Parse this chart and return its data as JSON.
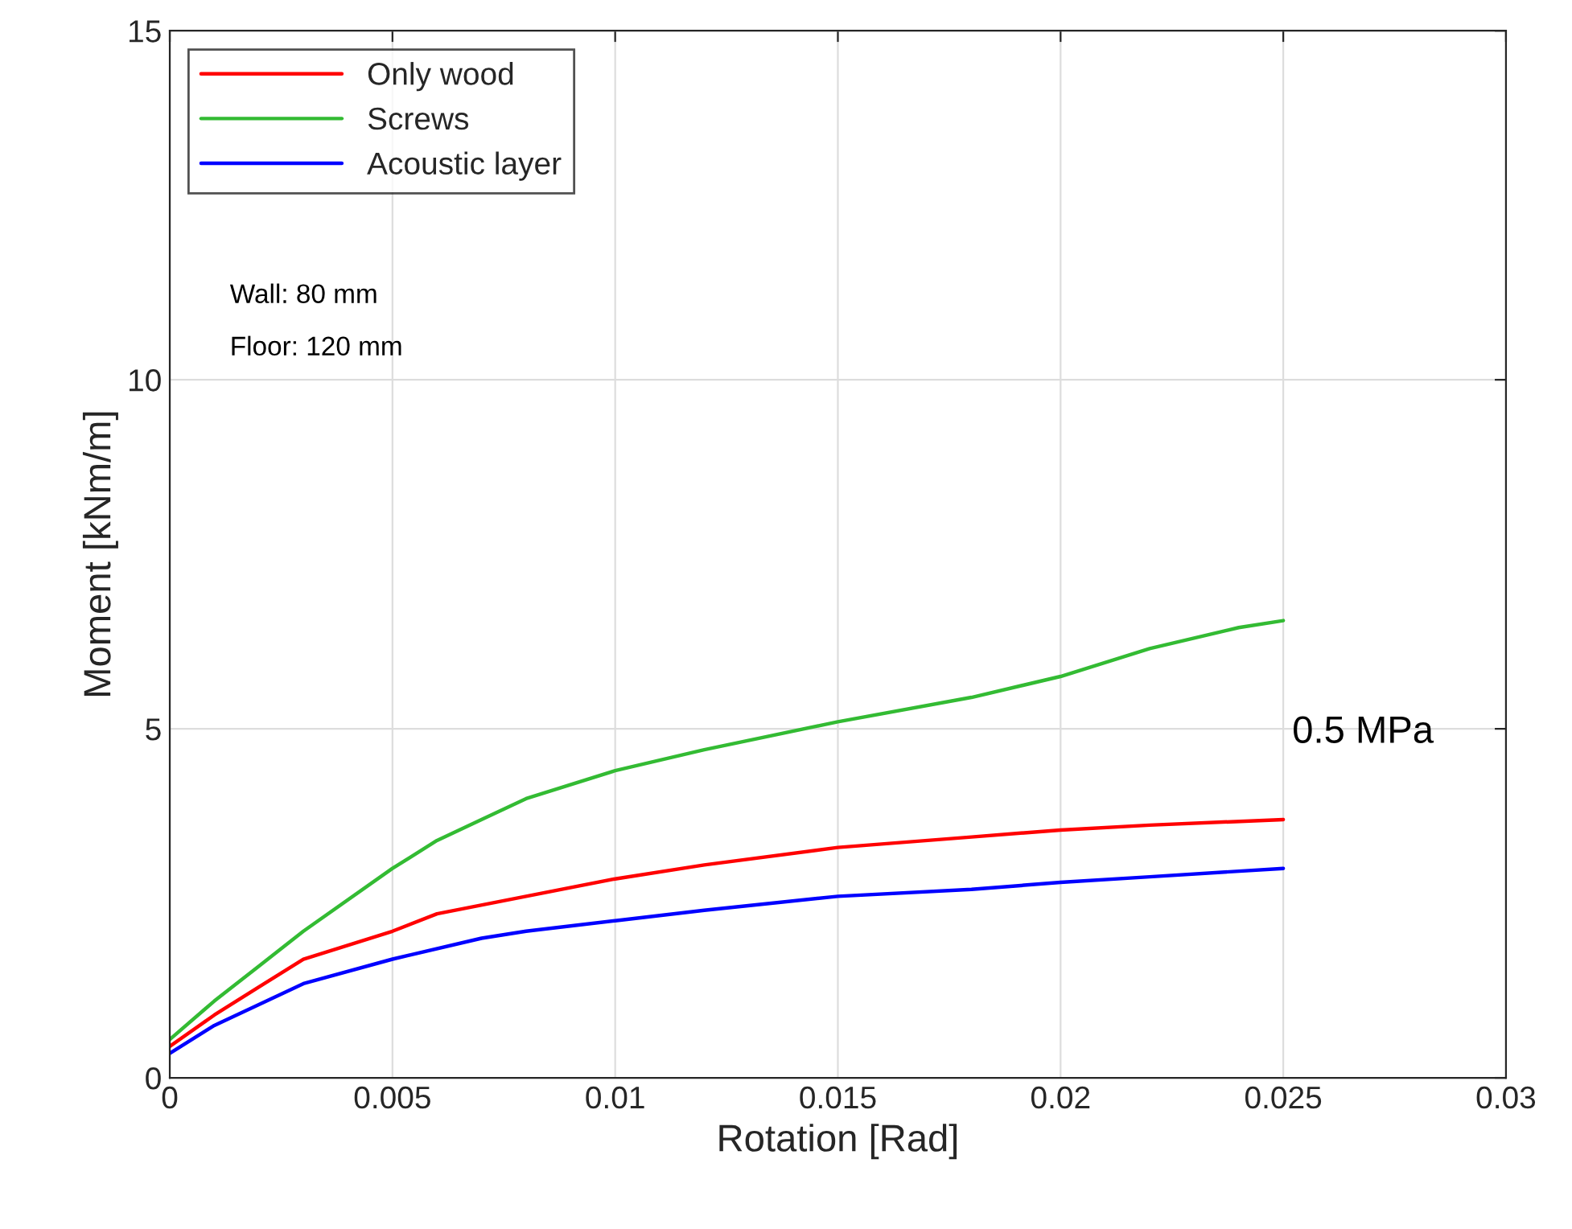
{
  "chart_data": {
    "type": "line",
    "xlabel": "Rotation [Rad]",
    "ylabel": "Moment [kNm/m]",
    "xlim": [
      0,
      0.03
    ],
    "xticks": [
      0,
      0.005,
      0.01,
      0.015,
      0.02,
      0.025,
      0.03
    ],
    "ylim": [
      0,
      15
    ],
    "yticks": [
      0,
      5,
      10,
      15
    ],
    "grid": true,
    "legend": "top left",
    "line_style": "solid",
    "marker": "none",
    "annotations": [
      "Wall: 80 mm",
      "Floor: 120 mm",
      "0.5 MPa"
    ],
    "series": [
      {
        "name": "Only wood",
        "color": "#ff0000",
        "x": [
          0,
          0.001,
          0.002,
          0.003,
          0.005,
          0.006,
          0.008,
          0.01,
          0.012,
          0.015,
          0.018,
          0.02,
          0.022,
          0.025
        ],
        "values": [
          0.45,
          0.9,
          1.3,
          1.7,
          2.1,
          2.35,
          2.6,
          2.85,
          3.05,
          3.3,
          3.45,
          3.55,
          3.62,
          3.7
        ]
      },
      {
        "name": "Screws",
        "color": "#33bb33",
        "x": [
          0,
          0.001,
          0.002,
          0.003,
          0.005,
          0.006,
          0.008,
          0.01,
          0.012,
          0.015,
          0.018,
          0.02,
          0.022,
          0.024,
          0.025
        ],
        "values": [
          0.55,
          1.1,
          1.6,
          2.1,
          3.0,
          3.4,
          4.0,
          4.4,
          4.7,
          5.1,
          5.45,
          5.75,
          6.15,
          6.45,
          6.55
        ]
      },
      {
        "name": "Acoustic layer",
        "color": "#0000ff",
        "x": [
          0,
          0.001,
          0.002,
          0.003,
          0.005,
          0.007,
          0.008,
          0.01,
          0.012,
          0.015,
          0.018,
          0.02,
          0.022,
          0.025
        ],
        "values": [
          0.35,
          0.75,
          1.05,
          1.35,
          1.7,
          2.0,
          2.1,
          2.25,
          2.4,
          2.6,
          2.7,
          2.8,
          2.88,
          3.0
        ]
      }
    ]
  }
}
